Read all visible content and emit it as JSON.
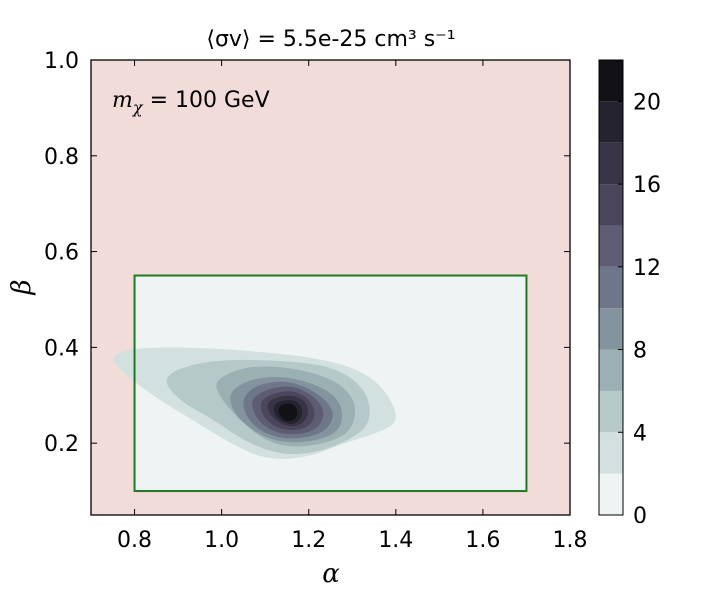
{
  "chart_data": {
    "type": "contour",
    "title": "⟨σv⟩ = 5.5e-25 cm³ s⁻¹",
    "annotation": "mχ = 100 GeV",
    "xlabel": "α",
    "ylabel": "β",
    "xlim": [
      0.7,
      1.8
    ],
    "ylim": [
      0.05,
      1.0
    ],
    "x_ticks": [
      0.8,
      1.0,
      1.2,
      1.4,
      1.6,
      1.8
    ],
    "x_tick_labels": [
      "0.8",
      "1.0",
      "1.2",
      "1.4",
      "1.6",
      "1.8"
    ],
    "y_ticks": [
      0.2,
      0.4,
      0.6,
      0.8,
      1.0
    ],
    "y_tick_labels": [
      "0.2",
      "0.4",
      "0.6",
      "0.8",
      "1.0"
    ],
    "excluded_region_color": "#f2dcd9",
    "allowed_region": {
      "x": [
        0.8,
        1.7
      ],
      "y": [
        0.1,
        0.55
      ],
      "edge_color": "#1f7a1f",
      "fill": "#eef4f3"
    },
    "peak": {
      "alpha": 1.16,
      "beta": 0.265,
      "value": 21
    },
    "contour_levels": [
      2,
      4,
      6,
      8,
      10,
      12,
      14,
      16,
      18,
      20
    ],
    "colorbar": {
      "min": 0,
      "max": 22,
      "ticks": [
        0,
        4,
        8,
        12,
        16,
        20
      ],
      "tick_labels": [
        "0",
        "4",
        "8",
        "12",
        "16",
        "20"
      ],
      "colors": [
        "#eef4f3",
        "#d2e0df",
        "#b5c9c8",
        "#9ab0b2",
        "#84949f",
        "#6e7689",
        "#5d5c72",
        "#4b465c",
        "#383446",
        "#262330",
        "#121116"
      ]
    }
  }
}
